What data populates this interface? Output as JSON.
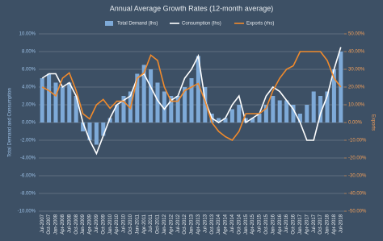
{
  "chart_data": {
    "type": "bar-line",
    "title": "Annual Average Growth Rates (12-month average)",
    "ylabel": "Total Demand and Consumption",
    "y2label": "Exports",
    "categories": [
      "Jul-2007",
      "Oct-2007",
      "Jan-2008",
      "Apr-2008",
      "Jul-2008",
      "Oct-2008",
      "Jan-2009",
      "Apr-2009",
      "Jul-2009",
      "Oct-2009",
      "Jan-2010",
      "Apr-2010",
      "Jul-2010",
      "Oct-2010",
      "Jan-2011",
      "Apr-2011",
      "Jul-2011",
      "Oct-2011",
      "Jan-2012",
      "Apr-2012",
      "Jul-2012",
      "Oct-2012",
      "Jan-2013",
      "Apr-2013",
      "Jul-2013",
      "Oct-2013",
      "Jan-2014",
      "Apr-2014",
      "Jul-2014",
      "Oct-2014",
      "Jan-2015",
      "Apr-2015",
      "Jul-2015",
      "Oct-2015",
      "Jan-2016",
      "Apr-2016",
      "Jul-2016",
      "Oct-2016",
      "Jan-2017",
      "Apr-2017",
      "Jul-2017",
      "Oct-2017",
      "Jan-2018",
      "Apr-2018",
      "Jul-2018"
    ],
    "series": [
      {
        "name": "Total Demand (lhs)",
        "type": "bar",
        "color": "#7eaad8",
        "values": [
          5,
          5.5,
          4.5,
          4,
          4.5,
          3,
          -1,
          -2,
          -2.5,
          -1.5,
          0.5,
          2,
          3,
          3.5,
          5.5,
          6.5,
          6,
          4.5,
          3.5,
          3,
          3,
          4,
          5,
          7.5,
          4,
          1,
          0.5,
          0.5,
          1.5,
          2,
          0.5,
          0.5,
          1,
          2,
          3,
          2.5,
          2.5,
          2,
          1,
          2,
          3.5,
          3,
          3.5,
          6,
          8
        ]
      },
      {
        "name": "Consumption (lhs)",
        "type": "line",
        "color": "#ffffff",
        "values": [
          5,
          5.5,
          5.5,
          4,
          4.5,
          3,
          0,
          -2,
          -3.5,
          -1.5,
          0.5,
          2,
          2.5,
          3,
          5,
          5.5,
          4,
          2.5,
          1.5,
          2.5,
          3,
          5,
          6,
          7.5,
          2.5,
          0.5,
          0,
          0.5,
          2,
          3,
          0,
          0.5,
          1,
          3,
          4,
          3.5,
          2.5,
          1.5,
          0,
          -2,
          -2,
          1,
          3,
          6,
          8.5
        ]
      },
      {
        "name": "Exports (rhs)",
        "type": "line",
        "axis": "y2",
        "color": "#f08a2c",
        "values": [
          20,
          18,
          15,
          25,
          28,
          18,
          5,
          2,
          10,
          13,
          8,
          12,
          12,
          8,
          25,
          28,
          38,
          35,
          20,
          12,
          12,
          18,
          20,
          22,
          12,
          0,
          -5,
          -8,
          -10,
          -5,
          5,
          5,
          5,
          8,
          18,
          25,
          30,
          32,
          40,
          40,
          40,
          40,
          35,
          25,
          20
        ]
      }
    ],
    "ylim": [
      -10,
      10
    ],
    "yticks": [
      {
        "value": 10,
        "label": "10.00%"
      },
      {
        "value": 8,
        "label": "8.00%"
      },
      {
        "value": 6,
        "label": "6.00%"
      },
      {
        "value": 4,
        "label": "4.00%"
      },
      {
        "value": 2,
        "label": "2.00%"
      },
      {
        "value": 0,
        "label": "0.00%"
      },
      {
        "value": -2,
        "label": "-2.00%"
      },
      {
        "value": -4,
        "label": "-4.00%"
      },
      {
        "value": -6,
        "label": "-6.00%"
      },
      {
        "value": -8,
        "label": "-8.00%"
      },
      {
        "value": -10,
        "label": "-10.00%"
      }
    ],
    "y2lim": [
      -50,
      50
    ],
    "y2ticks": [
      {
        "value": 50,
        "label": "50.00%"
      },
      {
        "value": 40,
        "label": "40.00%"
      },
      {
        "value": 30,
        "label": "30.00%"
      },
      {
        "value": 20,
        "label": "20.00%"
      },
      {
        "value": 10,
        "label": "10.00%"
      },
      {
        "value": 0,
        "label": "0.00%"
      },
      {
        "value": -10,
        "label": "-10.00%"
      },
      {
        "value": -20,
        "label": "-20.00%"
      },
      {
        "value": -30,
        "label": "-30.00%"
      },
      {
        "value": -40,
        "label": "-40.00%"
      },
      {
        "value": -50,
        "label": "-50.00%"
      }
    ],
    "grid": true
  }
}
